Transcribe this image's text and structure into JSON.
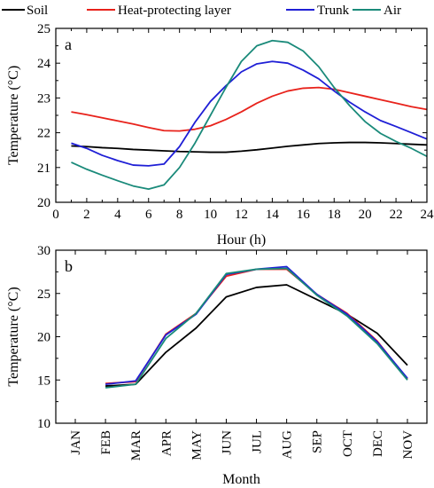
{
  "colors": {
    "Soil": "#000000",
    "Heat-protecting layer": "#e8221b",
    "Trunk": "#1f1fd6",
    "Air": "#1a8a7a"
  },
  "legend": [
    "Soil",
    "Heat-protecting layer",
    "Trunk",
    "Air"
  ],
  "chart_data": [
    {
      "type": "line",
      "panel_label": "a",
      "xlabel": "Hour (h)",
      "ylabel": "Temperature (°C)",
      "xlim": [
        0,
        24
      ],
      "ylim": [
        20,
        25
      ],
      "xticks": [
        0,
        2,
        4,
        6,
        8,
        10,
        12,
        14,
        16,
        18,
        20,
        22,
        24
      ],
      "yticks": [
        20,
        21,
        22,
        23,
        24,
        25
      ],
      "x": [
        1,
        2,
        3,
        4,
        5,
        6,
        7,
        8,
        9,
        10,
        11,
        12,
        13,
        14,
        15,
        16,
        17,
        18,
        19,
        20,
        21,
        22,
        23,
        24
      ],
      "series": [
        {
          "name": "Soil",
          "values": [
            21.62,
            21.6,
            21.57,
            21.55,
            21.52,
            21.5,
            21.48,
            21.46,
            21.45,
            21.44,
            21.44,
            21.47,
            21.51,
            21.56,
            21.61,
            21.65,
            21.69,
            21.71,
            21.72,
            21.72,
            21.71,
            21.69,
            21.67,
            21.65
          ]
        },
        {
          "name": "Heat-protecting layer",
          "values": [
            22.6,
            22.52,
            22.43,
            22.34,
            22.25,
            22.15,
            22.06,
            22.05,
            22.1,
            22.2,
            22.38,
            22.6,
            22.85,
            23.05,
            23.2,
            23.28,
            23.3,
            23.25,
            23.15,
            23.05,
            22.95,
            22.85,
            22.75,
            22.67
          ]
        },
        {
          "name": "Trunk",
          "values": [
            21.7,
            21.55,
            21.35,
            21.2,
            21.07,
            21.05,
            21.1,
            21.6,
            22.3,
            22.9,
            23.35,
            23.75,
            23.98,
            24.05,
            24.0,
            23.8,
            23.55,
            23.2,
            22.88,
            22.6,
            22.35,
            22.18,
            22.0,
            21.82
          ]
        },
        {
          "name": "Air",
          "values": [
            21.15,
            20.95,
            20.78,
            20.62,
            20.47,
            20.38,
            20.5,
            21.0,
            21.7,
            22.5,
            23.3,
            24.05,
            24.5,
            24.65,
            24.6,
            24.35,
            23.9,
            23.3,
            22.78,
            22.32,
            21.98,
            21.75,
            21.55,
            21.32
          ]
        }
      ]
    },
    {
      "type": "line",
      "panel_label": "b",
      "xlabel": "Month",
      "ylabel": "Temperature (°C)",
      "ylim": [
        10,
        30
      ],
      "yticks": [
        10,
        15,
        20,
        25,
        30
      ],
      "categories": [
        "JAN",
        "FEB",
        "MAR",
        "APR",
        "MAY",
        "JUN",
        "JUL",
        "AUG",
        "SEP",
        "OCT",
        "DEC",
        "NOV"
      ],
      "series": [
        {
          "name": "Soil",
          "values": [
            null,
            14.3,
            14.5,
            18.2,
            21.0,
            24.6,
            25.7,
            26.0,
            24.3,
            22.6,
            20.4,
            16.7
          ]
        },
        {
          "name": "Heat-protecting layer",
          "values": [
            null,
            14.6,
            14.8,
            20.3,
            22.7,
            27.0,
            27.8,
            27.8,
            24.9,
            22.7,
            19.5,
            15.1
          ]
        },
        {
          "name": "Trunk",
          "values": [
            null,
            14.5,
            14.9,
            20.2,
            22.6,
            27.2,
            27.8,
            28.1,
            24.9,
            22.6,
            19.4,
            15.2
          ]
        },
        {
          "name": "Air",
          "values": [
            null,
            14.1,
            14.5,
            19.8,
            22.7,
            27.3,
            27.8,
            27.9,
            24.8,
            22.4,
            19.2,
            15.0
          ]
        }
      ]
    }
  ]
}
